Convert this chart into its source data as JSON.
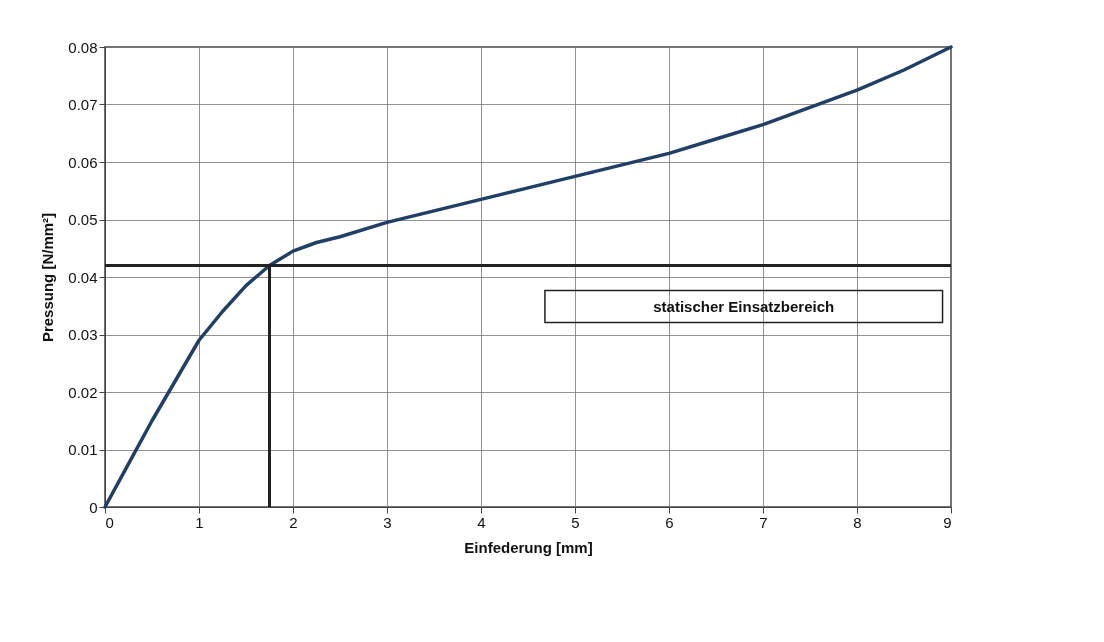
{
  "chart_data": {
    "type": "line",
    "xlabel": "Einfederung [mm]",
    "ylabel": "Pressung [N/mm²]",
    "x": [
      0,
      0.25,
      0.5,
      0.75,
      1,
      1.25,
      1.5,
      1.75,
      2,
      2.25,
      2.5,
      3,
      3.5,
      4,
      4.5,
      5,
      5.5,
      6,
      6.5,
      7,
      7.5,
      8,
      8.5,
      9
    ],
    "series": [
      {
        "color": "#1f3f66",
        "values": [
          0,
          0.0075,
          0.015,
          0.022,
          0.029,
          0.034,
          0.0385,
          0.042,
          0.0445,
          0.046,
          0.047,
          0.0495,
          0.0515,
          0.0535,
          0.0555,
          0.0575,
          0.0595,
          0.0615,
          0.064,
          0.0665,
          0.0695,
          0.0725,
          0.076,
          0.08
        ]
      }
    ],
    "xlim": [
      0,
      9
    ],
    "xticks": [
      0,
      1,
      2,
      3,
      4,
      5,
      6,
      7,
      8,
      9
    ],
    "ylim": [
      0,
      0.08
    ],
    "yticks": [
      0,
      0.01,
      0.02,
      0.03,
      0.04,
      0.05,
      0.06,
      0.07,
      0.08
    ],
    "ref_lines": [
      {
        "axis": "y",
        "value": 0.042,
        "label": "statischer Einsatzbereich",
        "color": "#222222"
      },
      {
        "axis": "x",
        "value": 1.75,
        "color": "#222222"
      }
    ],
    "grid": true,
    "marker": "none",
    "line_style": "solid"
  }
}
